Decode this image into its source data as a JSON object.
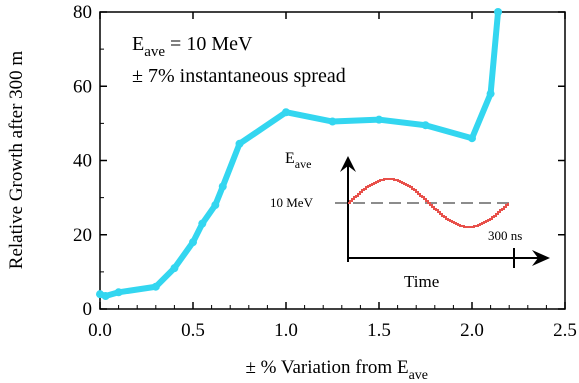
{
  "chart_data": {
    "type": "line",
    "title": "",
    "xlabel": "± % Variation from E",
    "xlabel_sub": "ave",
    "ylabel": "Relative Growth after 300 m",
    "xlim": [
      0,
      2.5
    ],
    "ylim": [
      0,
      80
    ],
    "x_ticks": [
      0.0,
      0.5,
      1.0,
      1.5,
      2.0,
      2.5
    ],
    "x_tick_labels": [
      "0.0",
      "0.5",
      "1.0",
      "1.5",
      "2.0",
      "2.5"
    ],
    "y_ticks": [
      0,
      20,
      40,
      60,
      80
    ],
    "y_tick_labels": [
      "0",
      "20",
      "40",
      "60",
      "80"
    ],
    "grid": false,
    "series": [
      {
        "color": "#33d6f0",
        "x": [
          0.0,
          0.03,
          0.1,
          0.3,
          0.4,
          0.5,
          0.55,
          0.62,
          0.66,
          0.75,
          1.0,
          1.25,
          1.5,
          1.75,
          2.0,
          2.1,
          2.14
        ],
        "y": [
          4,
          3.5,
          4.5,
          6,
          11,
          18,
          23,
          28,
          33,
          44.5,
          53,
          50.5,
          51,
          49.5,
          46,
          58,
          80
        ]
      }
    ],
    "annotations": {
      "line1_main": "E",
      "line1_sub": "ave",
      "line1_rest": " = 10 MeV",
      "line2": "± 7% instantaneous spread"
    },
    "inset": {
      "y_label_main": "E",
      "y_label_sub": "ave",
      "ref_label": "10 MeV",
      "time_mark_label": "300 ns",
      "x_label": "Time",
      "wave_color": "#e8504a",
      "ref_line_color": "#8c8c8c"
    }
  }
}
